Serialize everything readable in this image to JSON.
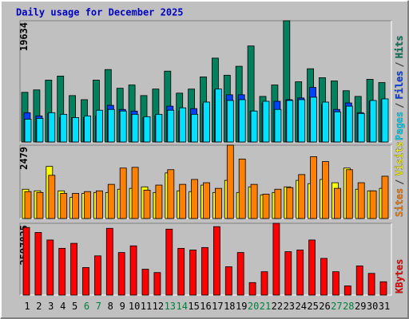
{
  "chart_data": [
    {
      "type": "bar",
      "title": "Daily usage for December 2025",
      "ylim": [
        0,
        19634
      ],
      "yticks": [
        19634
      ],
      "legend_separator": "/",
      "series": [
        {
          "name": "Hits",
          "color": "#00805c",
          "values": [
            8040,
            8430,
            10020,
            10670,
            7510,
            6850,
            10020,
            11730,
            8700,
            9230,
            7510,
            8570,
            11470,
            7910,
            8570,
            10540,
            13580,
            10810,
            12260,
            15550,
            7380,
            9230,
            19634,
            9750,
            11860,
            10410,
            9880,
            8300,
            7380,
            10150,
            9620
          ]
        },
        {
          "name": "Files",
          "color": "#0040ff",
          "values": [
            4740,
            4220,
            4610,
            3950,
            3950,
            3950,
            4220,
            5930,
            5270,
            5000,
            3950,
            4220,
            5800,
            5000,
            5400,
            6190,
            8430,
            7640,
            7640,
            5000,
            6320,
            6590,
            6850,
            7120,
            8830,
            6060,
            5270,
            6320,
            4740,
            6590,
            6850
          ]
        },
        {
          "name": "Pages",
          "color": "#00e0ff",
          "values": [
            3690,
            3820,
            4740,
            4480,
            3950,
            4220,
            5140,
            5270,
            5010,
            4480,
            4090,
            4480,
            5140,
            5530,
            4480,
            6460,
            8570,
            6720,
            6850,
            5010,
            6590,
            5270,
            6720,
            6850,
            7250,
            6460,
            4880,
            5800,
            4610,
            6720,
            6980
          ]
        }
      ]
    },
    {
      "type": "bar",
      "ylim": [
        0,
        2479
      ],
      "yticks": [
        2479
      ],
      "legend_separator": "/",
      "series": [
        {
          "name": "Visits",
          "color": "#ffff00",
          "values": [
            990,
            935,
            1760,
            935,
            715,
            850,
            880,
            880,
            990,
            1020,
            1070,
            880,
            1540,
            935,
            910,
            1130,
            880,
            1290,
            880,
            1070,
            800,
            880,
            1070,
            1290,
            1180,
            1320,
            1210,
            1705,
            990,
            935,
            1020
          ]
        },
        {
          "name": "Sites",
          "color": "#ff8000",
          "values": [
            910,
            880,
            1460,
            850,
            850,
            910,
            935,
            1155,
            1705,
            1730,
            960,
            1130,
            1650,
            1155,
            1320,
            1210,
            1020,
            2479,
            2010,
            1155,
            825,
            990,
            1045,
            1485,
            2090,
            1925,
            1020,
            1650,
            1210,
            935,
            1430
          ]
        }
      ]
    },
    {
      "type": "bar",
      "ylim": [
        0,
        2597825
      ],
      "yticks": [
        2597825
      ],
      "categories": [
        "1",
        "2",
        "3",
        "4",
        "5",
        "6",
        "7",
        "8",
        "9",
        "10",
        "11",
        "12",
        "13",
        "14",
        "15",
        "16",
        "17",
        "18",
        "19",
        "20",
        "21",
        "22",
        "23",
        "24",
        "25",
        "26",
        "27",
        "28",
        "29",
        "30",
        "31"
      ],
      "category_colors": [
        "#000000",
        "#000000",
        "#000000",
        "#000000",
        "#000000",
        "#008040",
        "#008040",
        "#000000",
        "#000000",
        "#000000",
        "#000000",
        "#000000",
        "#008040",
        "#008040",
        "#000000",
        "#000000",
        "#000000",
        "#000000",
        "#000000",
        "#008040",
        "#008040",
        "#000000",
        "#000000",
        "#000000",
        "#000000",
        "#000000",
        "#008040",
        "#008040",
        "#000000",
        "#000000",
        "#000000"
      ],
      "series": [
        {
          "name": "KBytes",
          "color": "#ff0000",
          "values": [
            2447000,
            2266000,
            1994000,
            1692000,
            1873000,
            997000,
            1420000,
            2417000,
            1541000,
            1782000,
            936000,
            816000,
            2386000,
            1692000,
            1631000,
            1722000,
            2477000,
            1027000,
            1541000,
            453000,
            846000,
            2597825,
            1571000,
            1631000,
            1994000,
            1329000,
            846000,
            332000,
            1057000,
            785000,
            483000
          ]
        }
      ]
    }
  ]
}
